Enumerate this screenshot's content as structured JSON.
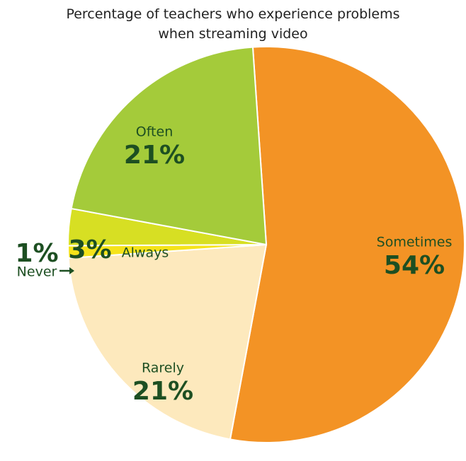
{
  "chart_data": {
    "type": "pie",
    "title": "Percentage of teachers who experience problems when streaming video",
    "categories": [
      "Sometimes",
      "Rarely",
      "Never",
      "Always",
      "Often"
    ],
    "values": [
      54,
      21,
      1,
      3,
      21
    ],
    "value_labels": [
      "54%",
      "21%",
      "1%",
      "3%",
      "21%"
    ],
    "colors": [
      "#f39325",
      "#fde9bd",
      "#f5e31a",
      "#d7df23",
      "#a4cb3a"
    ]
  }
}
